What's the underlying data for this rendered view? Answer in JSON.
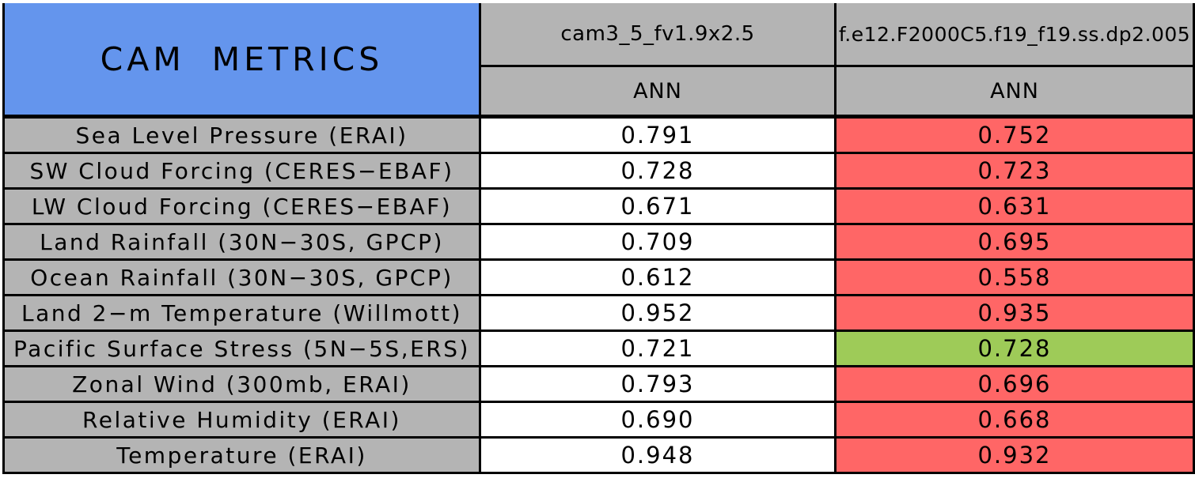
{
  "chart_data": {
    "type": "table",
    "title": "CAM METRICS",
    "col_headers": [
      "cam3_5_fv1.9x2.5",
      "f.e12.F2000C5.f19_f19.ss.dp2.005"
    ],
    "subheaders": [
      "ANN",
      "ANN"
    ],
    "colors": {
      "title_blue": "#6495ed",
      "header_gray": "#b4b4b4",
      "neutral_white": "#ffffff",
      "worse_red": "#ff6666",
      "better_green": "#9ecb58",
      "border_black": "#000000"
    },
    "rows": [
      {
        "label": "Sea Level Pressure (ERAI)",
        "values": [
          "0.791",
          "0.752"
        ],
        "cell_colors": [
          "#ffffff",
          "#ff6666"
        ]
      },
      {
        "label": "SW Cloud Forcing (CERES−EBAF)",
        "values": [
          "0.728",
          "0.723"
        ],
        "cell_colors": [
          "#ffffff",
          "#ff6666"
        ]
      },
      {
        "label": "LW Cloud Forcing (CERES−EBAF)",
        "values": [
          "0.671",
          "0.631"
        ],
        "cell_colors": [
          "#ffffff",
          "#ff6666"
        ]
      },
      {
        "label": "Land Rainfall (30N−30S, GPCP)",
        "values": [
          "0.709",
          "0.695"
        ],
        "cell_colors": [
          "#ffffff",
          "#ff6666"
        ]
      },
      {
        "label": "Ocean Rainfall (30N−30S, GPCP)",
        "values": [
          "0.612",
          "0.558"
        ],
        "cell_colors": [
          "#ffffff",
          "#ff6666"
        ]
      },
      {
        "label": "Land 2−m Temperature (Willmott)",
        "values": [
          "0.952",
          "0.935"
        ],
        "cell_colors": [
          "#ffffff",
          "#ff6666"
        ]
      },
      {
        "label": "Pacific Surface Stress (5N−5S,ERS)",
        "values": [
          "0.721",
          "0.728"
        ],
        "cell_colors": [
          "#ffffff",
          "#9ecb58"
        ]
      },
      {
        "label": "Zonal Wind (300mb, ERAI)",
        "values": [
          "0.793",
          "0.696"
        ],
        "cell_colors": [
          "#ffffff",
          "#ff6666"
        ]
      },
      {
        "label": "Relative Humidity (ERAI)",
        "values": [
          "0.690",
          "0.668"
        ],
        "cell_colors": [
          "#ffffff",
          "#ff6666"
        ]
      },
      {
        "label": "Temperature (ERAI)",
        "values": [
          "0.948",
          "0.932"
        ],
        "cell_colors": [
          "#ffffff",
          "#ff6666"
        ]
      }
    ]
  }
}
